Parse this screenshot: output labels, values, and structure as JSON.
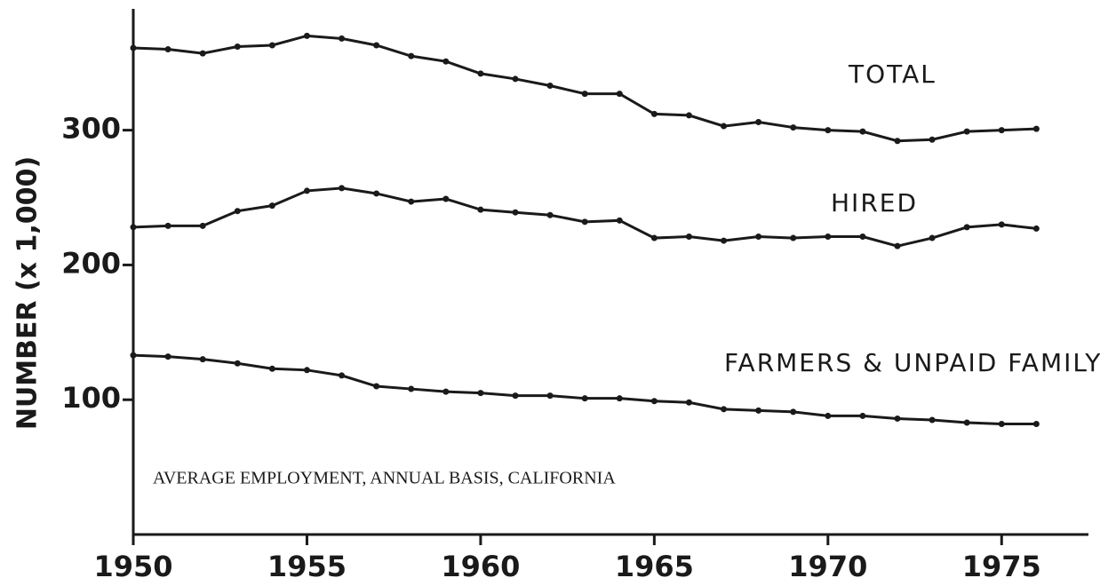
{
  "chart_data": {
    "type": "line",
    "ylabel": "NUMBER (x 1,000)",
    "annotation": "AVERAGE EMPLOYMENT, ANNUAL BASIS, CALIFORNIA",
    "x": [
      1950,
      1951,
      1952,
      1953,
      1954,
      1955,
      1956,
      1957,
      1958,
      1959,
      1960,
      1961,
      1962,
      1963,
      1964,
      1965,
      1966,
      1967,
      1968,
      1969,
      1970,
      1971,
      1972,
      1973,
      1974,
      1975,
      1976
    ],
    "series": [
      {
        "name": "TOTAL",
        "color": "#1a1a1a",
        "values": [
          361,
          360,
          357,
          362,
          363,
          370,
          368,
          363,
          355,
          351,
          342,
          338,
          333,
          327,
          327,
          312,
          311,
          303,
          306,
          302,
          300,
          299,
          292,
          293,
          299,
          300,
          301
        ]
      },
      {
        "name": "HIRED",
        "color": "#1a1a1a",
        "values": [
          228,
          229,
          229,
          240,
          244,
          255,
          257,
          253,
          247,
          249,
          241,
          239,
          237,
          232,
          233,
          220,
          221,
          218,
          221,
          220,
          221,
          221,
          214,
          220,
          228,
          230,
          227
        ]
      },
      {
        "name": "FARMERS & UNPAID FAMILY",
        "color": "#1a1a1a",
        "values": [
          133,
          132,
          130,
          127,
          123,
          122,
          118,
          110,
          108,
          106,
          105,
          103,
          103,
          101,
          101,
          99,
          98,
          93,
          92,
          91,
          88,
          88,
          86,
          85,
          83,
          82,
          82
        ]
      }
    ],
    "xlim": [
      1950,
      1977.5
    ],
    "xticks": [
      1950,
      1955,
      1960,
      1965,
      1970,
      1975
    ],
    "ylim": [
      0,
      390
    ],
    "yticks": [
      100,
      200,
      300
    ],
    "grid": false
  }
}
